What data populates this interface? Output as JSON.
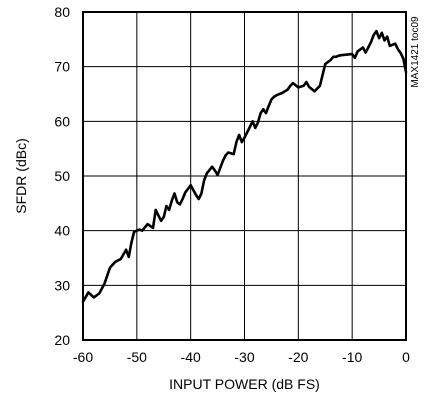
{
  "chart_data": {
    "type": "line",
    "title": "",
    "xlabel": "INPUT POWER (dB FS)",
    "ylabel": "SFDR (dBc)",
    "xlim": [
      -60,
      0
    ],
    "ylim": [
      20,
      80
    ],
    "xticks": [
      -60,
      -50,
      -40,
      -30,
      -20,
      -10,
      0
    ],
    "yticks": [
      20,
      30,
      40,
      50,
      60,
      70,
      80
    ],
    "grid": true,
    "side_note": "MAX1421 toc09",
    "series": [
      {
        "x": [
          -60,
          -59,
          -58,
          -57,
          -56,
          -55,
          -54,
          -53,
          -52,
          -51.5,
          -51,
          -50.5,
          -50,
          -49.5,
          -49,
          -48,
          -47,
          -46.5,
          -46,
          -45.5,
          -45,
          -44.5,
          -44,
          -43.5,
          -43,
          -42.5,
          -42,
          -41.5,
          -41,
          -40,
          -39,
          -38.5,
          -38,
          -37.5,
          -37,
          -36,
          -35.5,
          -35,
          -34.5,
          -34,
          -33.5,
          -33,
          -32,
          -31.5,
          -31,
          -30.5,
          -30,
          -29,
          -28.5,
          -28,
          -27.5,
          -27,
          -26.5,
          -26,
          -25.5,
          -25,
          -24.5,
          -24,
          -23,
          -22.5,
          -22,
          -21.5,
          -21,
          -20,
          -19,
          -18.5,
          -18,
          -17,
          -16,
          -15.5,
          -15,
          -14,
          -13.5,
          -13,
          -12.5,
          -12,
          -11,
          -10,
          -9.5,
          -9,
          -8,
          -7.5,
          -7,
          -6.5,
          -6,
          -5.5,
          -5,
          -4.5,
          -4,
          -3.5,
          -3,
          -2,
          -1.5,
          -1,
          -0.5,
          0
        ],
        "y": [
          27,
          28.7,
          27.8,
          28.5,
          30.3,
          33.2,
          34.3,
          34.8,
          36.5,
          35.2,
          37.8,
          39.8,
          40,
          40.2,
          40,
          41.2,
          40.5,
          43.8,
          42.8,
          41.8,
          42.5,
          44.5,
          43.8,
          45.5,
          46.8,
          45.2,
          44.8,
          45.8,
          47,
          48.3,
          46.5,
          45.8,
          46.8,
          49.2,
          50.5,
          51.7,
          51,
          50.2,
          51.5,
          52.8,
          53.8,
          54.3,
          54,
          56.2,
          57.5,
          56.2,
          57,
          59,
          60,
          58.8,
          59.8,
          61.5,
          62.2,
          61.5,
          62.8,
          64,
          64.5,
          64.8,
          65.2,
          65.5,
          65.8,
          66.5,
          67,
          66.2,
          66.5,
          67.2,
          66.3,
          65.5,
          66.5,
          68.5,
          70.5,
          71.2,
          71.8,
          71.8,
          72,
          72.1,
          72.2,
          72.3,
          71.6,
          72.8,
          73.5,
          72.6,
          73.5,
          74.5,
          75.8,
          76.5,
          75.2,
          76.2,
          74.8,
          75.5,
          73.8,
          74.2,
          73.2,
          72.5,
          71.5,
          69
        ]
      }
    ]
  }
}
